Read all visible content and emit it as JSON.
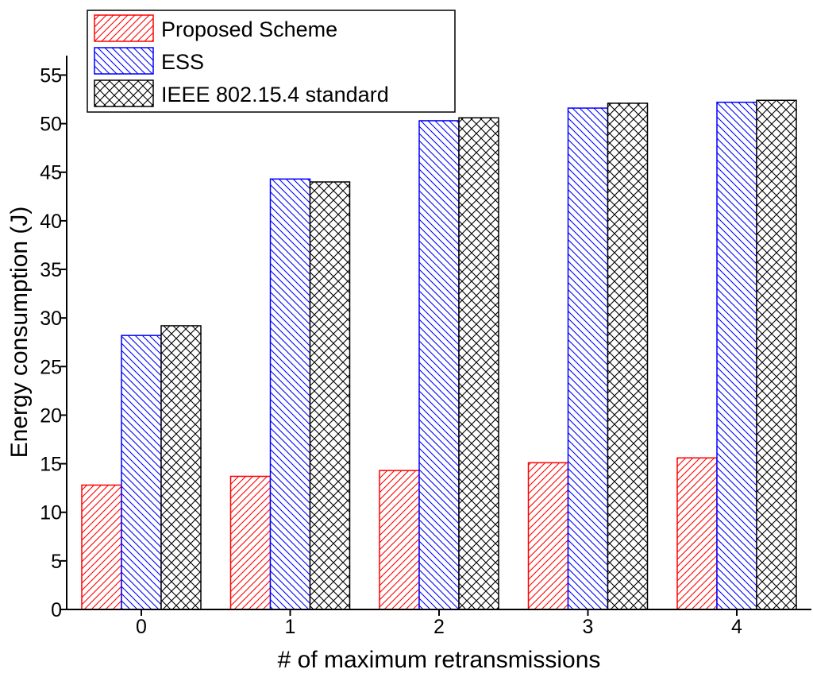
{
  "chart_data": {
    "type": "bar",
    "title": "",
    "xlabel": "# of maximum retransmissions",
    "ylabel": "Energy consumption (J)",
    "categories": [
      "0",
      "1",
      "2",
      "3",
      "4"
    ],
    "ylim": [
      0,
      57
    ],
    "yticks": [
      0,
      5,
      10,
      15,
      20,
      25,
      30,
      35,
      40,
      45,
      50,
      55
    ],
    "grid": false,
    "legend_position": "top-left",
    "series": [
      {
        "name": "Proposed Scheme",
        "color": "#ff0000",
        "pattern": "forward-diagonal-hatch",
        "values": [
          12.8,
          13.7,
          14.3,
          15.1,
          15.6
        ]
      },
      {
        "name": "ESS",
        "color": "#0000ff",
        "pattern": "backward-diagonal-hatch",
        "values": [
          28.2,
          44.3,
          50.3,
          51.6,
          52.2
        ]
      },
      {
        "name": "IEEE 802.15.4 standard",
        "color": "#000000",
        "pattern": "cross-hatch",
        "values": [
          29.2,
          44.0,
          50.6,
          52.1,
          52.4
        ]
      }
    ]
  }
}
